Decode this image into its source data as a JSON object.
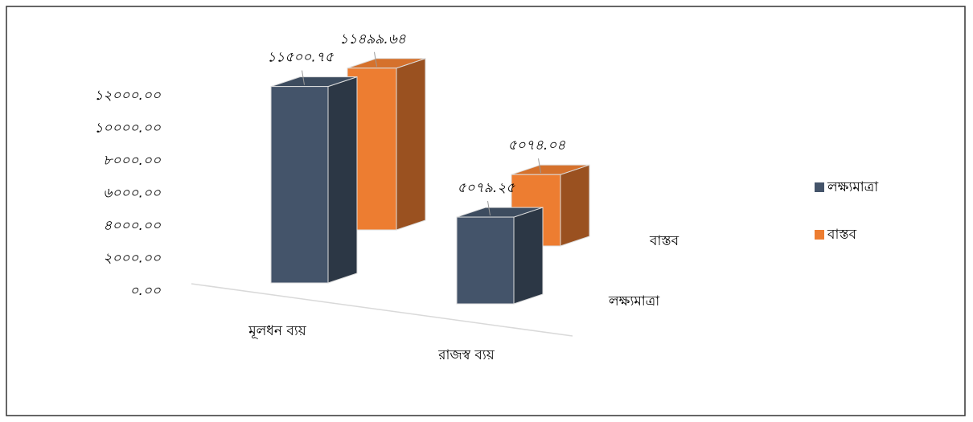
{
  "chart_data": {
    "type": "bar3d",
    "categories": [
      "মূলধন ব্যয়",
      "রাজস্ব ব্যয়"
    ],
    "series": [
      {
        "name": "লক্ষ্যমাত্রা",
        "color": "#44546a",
        "values": [
          11500.75,
          5079.25
        ],
        "value_labels": [
          "১১৫০০.৭৫",
          "৫০৭৯.২৫"
        ]
      },
      {
        "name": "বাস্তব",
        "color": "#ed7d31",
        "values": [
          11499.64,
          5074.04
        ],
        "value_labels": [
          "১১৪৯৯.৬৪",
          "৫০৭৪.০৪"
        ]
      }
    ],
    "ylim": [
      0,
      12000
    ],
    "yticks": [
      {
        "value": 0,
        "label": "০.০০"
      },
      {
        "value": 2000,
        "label": "২০০০.০০"
      },
      {
        "value": 4000,
        "label": "৪০০০.০০"
      },
      {
        "value": 6000,
        "label": "৬০০০.০০"
      },
      {
        "value": 8000,
        "label": "৮০০০.০০"
      },
      {
        "value": 10000,
        "label": "১০০০০.০০"
      },
      {
        "value": 12000,
        "label": "১২০০০.০০"
      }
    ],
    "legend": "right"
  }
}
